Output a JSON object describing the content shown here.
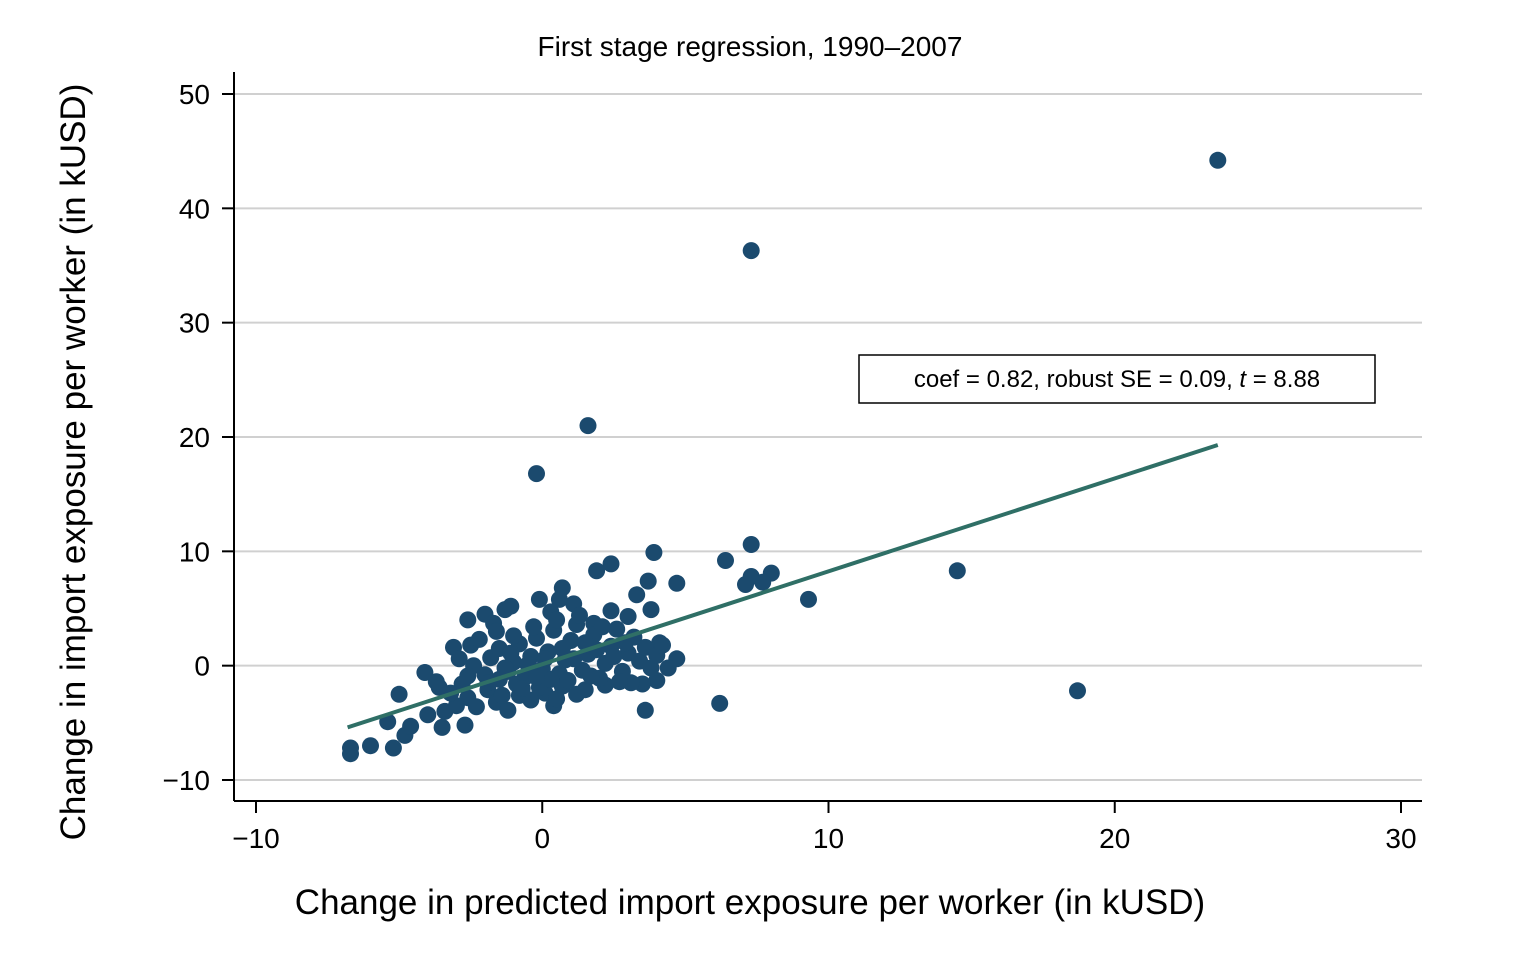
{
  "chart_data": {
    "type": "scatter",
    "title": "First stage regression, 1990–2007",
    "xlabel": "Change in predicted import exposure per worker (in kUSD)",
    "ylabel": "Change in import exposure per worker (in kUSD)",
    "xlim": [
      -10.8,
      30.8
    ],
    "ylim": [
      -11.8,
      51.7
    ],
    "xticks": [
      -10,
      0,
      10,
      20,
      30
    ],
    "yticks": [
      -10,
      0,
      10,
      20,
      30,
      40,
      50
    ],
    "xtick_labels": [
      "−10",
      "0",
      "10",
      "20",
      "30"
    ],
    "ytick_labels": [
      "−10",
      "0",
      "10",
      "20",
      "30",
      "40",
      "50"
    ],
    "grid": "horizontal",
    "legend": "none",
    "colors": {
      "points": "#1b4a6e",
      "fit_line": "#2f6f66",
      "grid": "#d0d0d0"
    },
    "annotation": {
      "text_before": "coef = 0.82, robust SE = 0.09, ",
      "text_italic": "t",
      "text_after": " = 8.88"
    },
    "fit_line": {
      "x": [
        -6.8,
        23.6
      ],
      "y": [
        -5.4,
        19.3
      ]
    },
    "series": [
      {
        "points": [
          [
            23.6,
            44.2
          ],
          [
            7.3,
            36.3
          ],
          [
            1.6,
            21.0
          ],
          [
            -0.2,
            16.8
          ],
          [
            14.5,
            8.3
          ],
          [
            18.7,
            -2.2
          ],
          [
            9.3,
            5.8
          ],
          [
            7.3,
            10.6
          ],
          [
            8.0,
            8.1
          ],
          [
            7.7,
            7.3
          ],
          [
            7.3,
            7.8
          ],
          [
            7.1,
            7.1
          ],
          [
            6.4,
            9.2
          ],
          [
            6.2,
            -3.3
          ],
          [
            3.9,
            9.9
          ],
          [
            4.7,
            7.2
          ],
          [
            3.7,
            7.4
          ],
          [
            2.4,
            8.9
          ],
          [
            1.9,
            8.3
          ],
          [
            0.7,
            6.8
          ],
          [
            -0.1,
            5.8
          ],
          [
            -1.3,
            4.9
          ],
          [
            -2.0,
            4.5
          ],
          [
            -2.6,
            4.0
          ],
          [
            -1.1,
            5.2
          ],
          [
            3.3,
            6.2
          ],
          [
            3.6,
            -3.9
          ],
          [
            4.7,
            0.6
          ],
          [
            4.4,
            -0.2
          ],
          [
            4.0,
            -1.3
          ],
          [
            3.5,
            -1.6
          ],
          [
            3.8,
            4.9
          ],
          [
            3.0,
            4.3
          ],
          [
            2.4,
            4.8
          ],
          [
            1.8,
            3.7
          ],
          [
            1.1,
            5.4
          ],
          [
            0.6,
            5.8
          ],
          [
            0.3,
            4.7
          ],
          [
            4.1,
            2.0
          ],
          [
            3.1,
            -1.5
          ],
          [
            2.2,
            -1.7
          ],
          [
            -6.7,
            -7.2
          ],
          [
            -6.7,
            -7.7
          ],
          [
            -6.0,
            -7.0
          ],
          [
            -5.2,
            -7.2
          ],
          [
            -4.8,
            -6.1
          ],
          [
            -4.6,
            -5.3
          ],
          [
            -5.4,
            -4.9
          ],
          [
            -5.0,
            -2.5
          ],
          [
            -4.0,
            -4.3
          ],
          [
            -3.5,
            -5.4
          ],
          [
            -3.4,
            -4.0
          ],
          [
            -2.7,
            -5.2
          ],
          [
            -4.1,
            -0.6
          ],
          [
            -3.7,
            -1.4
          ],
          [
            -3.1,
            1.6
          ],
          [
            -2.5,
            1.8
          ],
          [
            -1.7,
            3.7
          ],
          [
            -3.0,
            -3.5
          ],
          [
            -2.6,
            -2.8
          ],
          [
            -2.3,
            -3.6
          ],
          [
            -1.9,
            -2.1
          ],
          [
            -1.6,
            -3.2
          ],
          [
            -1.5,
            -1.2
          ],
          [
            -1.2,
            -3.9
          ],
          [
            -0.8,
            -2.6
          ],
          [
            -0.4,
            -3.0
          ],
          [
            0.1,
            -2.4
          ],
          [
            0.4,
            -3.5
          ],
          [
            0.7,
            -1.8
          ],
          [
            1.2,
            -2.5
          ],
          [
            -2.4,
            0.0
          ],
          [
            -2.0,
            -0.8
          ],
          [
            -1.8,
            0.7
          ],
          [
            -1.5,
            1.5
          ],
          [
            -1.2,
            -0.5
          ],
          [
            -1.0,
            0.3
          ],
          [
            -0.8,
            1.9
          ],
          [
            -0.6,
            -1.0
          ],
          [
            -0.4,
            0.8
          ],
          [
            -0.2,
            2.4
          ],
          [
            0.0,
            -0.3
          ],
          [
            0.2,
            1.2
          ],
          [
            0.4,
            3.1
          ],
          [
            0.6,
            -0.7
          ],
          [
            0.8,
            0.5
          ],
          [
            1.0,
            2.2
          ],
          [
            1.2,
            3.6
          ],
          [
            1.4,
            -0.4
          ],
          [
            1.6,
            1.0
          ],
          [
            1.8,
            2.7
          ],
          [
            2.0,
            -1.1
          ],
          [
            2.2,
            0.2
          ],
          [
            2.4,
            1.7
          ],
          [
            2.6,
            3.2
          ],
          [
            2.8,
            -0.5
          ],
          [
            3.0,
            1.1
          ],
          [
            3.2,
            2.5
          ],
          [
            3.4,
            0.4
          ],
          [
            3.6,
            1.6
          ],
          [
            3.8,
            -0.2
          ],
          [
            4.0,
            0.9
          ],
          [
            4.2,
            1.8
          ],
          [
            -2.8,
            -1.6
          ],
          [
            -3.2,
            -2.4
          ],
          [
            -3.6,
            -1.9
          ],
          [
            -1.4,
            -2.6
          ],
          [
            -0.9,
            -1.6
          ],
          [
            -0.1,
            -1.9
          ],
          [
            0.5,
            -2.9
          ],
          [
            1.5,
            -2.1
          ],
          [
            2.7,
            -1.4
          ],
          [
            -2.2,
            2.3
          ],
          [
            -1.6,
            3.0
          ],
          [
            -1.0,
            2.6
          ],
          [
            -0.3,
            3.4
          ],
          [
            0.5,
            4.0
          ],
          [
            1.3,
            4.4
          ],
          [
            2.1,
            3.4
          ],
          [
            -2.9,
            0.6
          ],
          [
            -2.6,
            -0.9
          ],
          [
            -0.7,
            -2.0
          ],
          [
            0.9,
            -1.3
          ],
          [
            1.7,
            -0.9
          ],
          [
            2.5,
            0.8
          ],
          [
            -1.1,
            1.1
          ],
          [
            -0.5,
            0.1
          ],
          [
            0.3,
            -1.2
          ],
          [
            1.1,
            0.6
          ],
          [
            1.9,
            1.4
          ],
          [
            2.9,
            2.0
          ],
          [
            -1.9,
            -1.5
          ],
          [
            -1.3,
            -0.2
          ],
          [
            0.1,
            0.6
          ],
          [
            0.7,
            1.5
          ],
          [
            1.5,
            2.0
          ],
          [
            -0.2,
            -1.0
          ]
        ]
      }
    ]
  }
}
